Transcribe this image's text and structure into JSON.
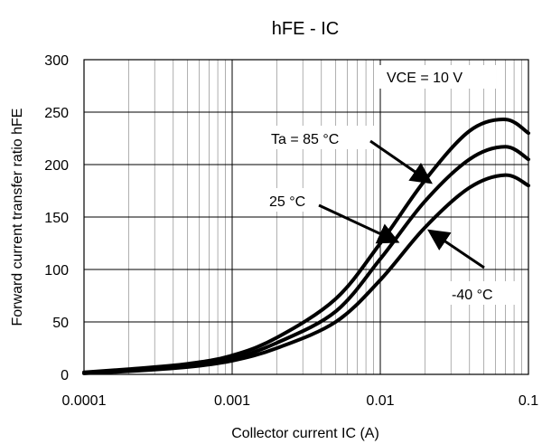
{
  "chart_data": {
    "type": "line",
    "title": "hFE - IC",
    "xlabel": "Collector current IC (A)",
    "ylabel": "Forward current transfer ratio hFE",
    "xscale": "log",
    "xlim": [
      0.0001,
      0.1
    ],
    "ylim": [
      0,
      300
    ],
    "grid": true,
    "x_ticks": [
      "0.0001",
      "0.001",
      "0.01",
      "0.1"
    ],
    "y_ticks": [
      "0",
      "50",
      "100",
      "150",
      "200",
      "250",
      "300"
    ],
    "condition_label": "VCE = 10 V",
    "series": [
      {
        "name": "Ta = 85 °C",
        "x": [
          0.0001,
          0.0002,
          0.0005,
          0.001,
          0.002,
          0.005,
          0.01,
          0.02,
          0.04,
          0.07,
          0.1
        ],
        "y": [
          2,
          5,
          10,
          18,
          35,
          72,
          125,
          185,
          232,
          243,
          230
        ]
      },
      {
        "name": "25 °C",
        "x": [
          0.0001,
          0.0002,
          0.0005,
          0.001,
          0.002,
          0.005,
          0.01,
          0.02,
          0.04,
          0.07,
          0.1
        ],
        "y": [
          1,
          4,
          9,
          15,
          30,
          60,
          110,
          165,
          205,
          217,
          205
        ]
      },
      {
        "name": "-40 °C",
        "x": [
          0.0001,
          0.0002,
          0.0005,
          0.001,
          0.002,
          0.005,
          0.01,
          0.02,
          0.04,
          0.07,
          0.1
        ],
        "y": [
          1,
          3,
          7,
          13,
          25,
          50,
          90,
          140,
          178,
          190,
          180
        ]
      }
    ],
    "annotations": [
      {
        "label": "Ta = 85 °C",
        "series": 0
      },
      {
        "label": "25 °C",
        "series": 1
      },
      {
        "label": "-40 °C",
        "series": 2
      }
    ]
  }
}
